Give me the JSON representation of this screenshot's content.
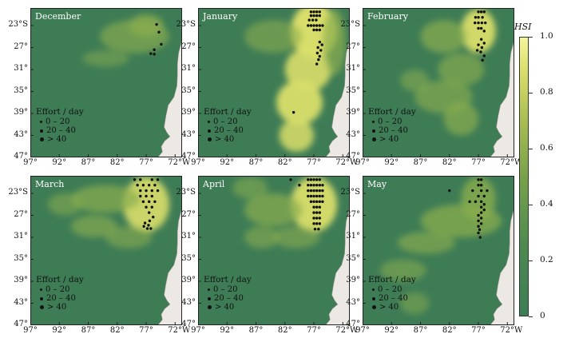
{
  "panels": [
    {
      "title": "December",
      "col": 0,
      "row": 0,
      "dots": [
        [
          -75.2,
          -22.8
        ],
        [
          -74.8,
          -24.2
        ],
        [
          -74.4,
          -26.4
        ],
        [
          -75.6,
          -27.4
        ],
        [
          -76.2,
          -28.1
        ],
        [
          -75.6,
          -28.2
        ]
      ],
      "blobs": [
        [
          -79,
          -25,
          6,
          3,
          0.55
        ],
        [
          -77,
          -23,
          3,
          2,
          0.7
        ],
        [
          -84,
          -29,
          4,
          1.5,
          0.4
        ]
      ]
    },
    {
      "title": "January",
      "col": 1,
      "row": 0,
      "dots": [
        [
          -77.5,
          -20.5
        ],
        [
          -77,
          -20.5
        ],
        [
          -76.5,
          -20.5
        ],
        [
          -76,
          -20.5
        ],
        [
          -77.5,
          -21.2
        ],
        [
          -77,
          -21.2
        ],
        [
          -76.5,
          -21.2
        ],
        [
          -76,
          -21.2
        ],
        [
          -77.8,
          -22
        ],
        [
          -77.2,
          -22
        ],
        [
          -76.6,
          -22
        ],
        [
          -78,
          -23
        ],
        [
          -77.5,
          -23
        ],
        [
          -77,
          -23
        ],
        [
          -76.5,
          -23
        ],
        [
          -76,
          -23
        ],
        [
          -75.5,
          -23
        ],
        [
          -77,
          -23.8
        ],
        [
          -76.5,
          -23.8
        ],
        [
          -76,
          -23.8
        ],
        [
          -76,
          -26
        ],
        [
          -75.6,
          -26.5
        ],
        [
          -76.3,
          -27
        ],
        [
          -75.8,
          -27.5
        ],
        [
          -76.4,
          -28
        ],
        [
          -76,
          -28.6
        ],
        [
          -76.2,
          -29.2
        ],
        [
          -76.5,
          -30
        ],
        [
          -80.5,
          -38.8
        ]
      ],
      "blobs": [
        [
          -77,
          -24,
          4,
          5,
          0.9
        ],
        [
          -78,
          -31,
          4,
          4,
          0.8
        ],
        [
          -79.5,
          -37,
          4,
          4,
          0.85
        ],
        [
          -80,
          -43,
          3,
          3,
          0.75
        ],
        [
          -84,
          -25,
          5,
          3,
          0.5
        ],
        [
          -73.5,
          -26,
          2,
          6,
          0.6
        ]
      ]
    },
    {
      "title": "February",
      "col": 2,
      "row": 0,
      "dots": [
        [
          -77,
          -20.5
        ],
        [
          -76.5,
          -20.5
        ],
        [
          -76,
          -20.5
        ],
        [
          -77.5,
          -21.5
        ],
        [
          -77,
          -21.5
        ],
        [
          -76.3,
          -21.5
        ],
        [
          -77.6,
          -22.5
        ],
        [
          -77,
          -22.5
        ],
        [
          -76.4,
          -22.5
        ],
        [
          -75.8,
          -22.5
        ],
        [
          -77,
          -23.5
        ],
        [
          -76.5,
          -23.5
        ],
        [
          -76,
          -24
        ],
        [
          -76.5,
          -25.5
        ],
        [
          -76,
          -26.2
        ],
        [
          -77,
          -26.5
        ],
        [
          -76.4,
          -27
        ],
        [
          -77.2,
          -27.5
        ],
        [
          -76.6,
          -27.8
        ],
        [
          -76,
          -28.5
        ],
        [
          -76.3,
          -29.3
        ]
      ],
      "blobs": [
        [
          -77,
          -24,
          3,
          4,
          0.85
        ],
        [
          -83,
          -25,
          4,
          3,
          0.6
        ],
        [
          -80,
          -31,
          4,
          3,
          0.55
        ],
        [
          -83,
          -36,
          5,
          3,
          0.55
        ],
        [
          -80,
          -40,
          3,
          3,
          0.6
        ],
        [
          -88,
          -33,
          2.5,
          2,
          0.45
        ]
      ]
    },
    {
      "title": "March",
      "col": 0,
      "row": 1,
      "dots": [
        [
          -79,
          -20.5
        ],
        [
          -78,
          -20.5
        ],
        [
          -76,
          -20.5
        ],
        [
          -75,
          -20.5
        ],
        [
          -78.5,
          -21.5
        ],
        [
          -77.5,
          -21.5
        ],
        [
          -76.5,
          -21.5
        ],
        [
          -75.5,
          -21.5
        ],
        [
          -78,
          -22.5
        ],
        [
          -77,
          -22.5
        ],
        [
          -76,
          -22.5
        ],
        [
          -75,
          -22.5
        ],
        [
          -78,
          -23.5
        ],
        [
          -77,
          -23.5
        ],
        [
          -76,
          -23.5
        ],
        [
          -77.5,
          -24.5
        ],
        [
          -76.5,
          -24.5
        ],
        [
          -75.5,
          -24.5
        ],
        [
          -77,
          -25.5
        ],
        [
          -76,
          -25.5
        ],
        [
          -76.5,
          -26.5
        ],
        [
          -75.8,
          -27.3
        ],
        [
          -76.4,
          -28
        ],
        [
          -77.2,
          -28.4
        ],
        [
          -76.6,
          -28.8
        ],
        [
          -77.4,
          -29
        ],
        [
          -76.8,
          -29.4
        ],
        [
          -76.2,
          -29.4
        ]
      ],
      "blobs": [
        [
          -77,
          -25,
          4,
          5,
          0.8
        ],
        [
          -84,
          -24,
          6,
          2.5,
          0.6
        ],
        [
          -86,
          -29,
          4,
          2,
          0.55
        ],
        [
          -80,
          -31,
          4,
          2,
          0.5
        ],
        [
          -91,
          -25,
          3,
          2,
          0.45
        ]
      ]
    },
    {
      "title": "April",
      "col": 1,
      "row": 1,
      "dots": [
        [
          -81,
          -20.5
        ],
        [
          -79.5,
          -21.5
        ],
        [
          -78,
          -20.5
        ],
        [
          -77.5,
          -20.5
        ],
        [
          -77,
          -20.5
        ],
        [
          -76.5,
          -20.5
        ],
        [
          -76,
          -20.5
        ],
        [
          -78,
          -21.5
        ],
        [
          -77.5,
          -21.5
        ],
        [
          -77,
          -21.5
        ],
        [
          -76.5,
          -21.5
        ],
        [
          -76,
          -21.5
        ],
        [
          -75.5,
          -21.5
        ],
        [
          -78,
          -22.5
        ],
        [
          -77.5,
          -22.5
        ],
        [
          -77,
          -22.5
        ],
        [
          -76.5,
          -22.5
        ],
        [
          -76,
          -22.5
        ],
        [
          -75.5,
          -22.5
        ],
        [
          -78,
          -23.5
        ],
        [
          -77.5,
          -23.5
        ],
        [
          -77,
          -23.5
        ],
        [
          -76.5,
          -23.5
        ],
        [
          -76,
          -23.5
        ],
        [
          -75.5,
          -23.5
        ],
        [
          -77.5,
          -24.5
        ],
        [
          -77,
          -24.5
        ],
        [
          -76.5,
          -24.5
        ],
        [
          -76,
          -24.5
        ],
        [
          -75.5,
          -24.5
        ],
        [
          -77,
          -25.5
        ],
        [
          -76.5,
          -25.5
        ],
        [
          -76,
          -25.5
        ],
        [
          -77,
          -26.5
        ],
        [
          -76.5,
          -26.5
        ],
        [
          -76,
          -26.5
        ],
        [
          -77,
          -27.5
        ],
        [
          -76.5,
          -27.5
        ],
        [
          -76,
          -27.5
        ],
        [
          -77,
          -28.5
        ],
        [
          -76.5,
          -28.5
        ],
        [
          -76,
          -28.5
        ],
        [
          -76.8,
          -29.5
        ],
        [
          -76.2,
          -29.5
        ]
      ],
      "blobs": [
        [
          -77,
          -25,
          4,
          5,
          0.85
        ],
        [
          -84,
          -26,
          5,
          3,
          0.6
        ],
        [
          -86,
          -31,
          3,
          2,
          0.5
        ],
        [
          -80,
          -31,
          4,
          2,
          0.5
        ],
        [
          -88,
          -22,
          3,
          2,
          0.45
        ]
      ]
    },
    {
      "title": "May",
      "col": 2,
      "row": 1,
      "dots": [
        [
          -82,
          -22.5
        ],
        [
          -77,
          -20.5
        ],
        [
          -76.5,
          -20.5
        ],
        [
          -77,
          -21.5
        ],
        [
          -76.5,
          -21.5
        ],
        [
          -78,
          -22.5
        ],
        [
          -76.5,
          -22.5
        ],
        [
          -75.5,
          -22.5
        ],
        [
          -77,
          -23.5
        ],
        [
          -76,
          -23.5
        ],
        [
          -78.5,
          -24.5
        ],
        [
          -77.5,
          -24.5
        ],
        [
          -76.5,
          -24.5
        ],
        [
          -76,
          -25
        ],
        [
          -76.5,
          -25.5
        ],
        [
          -76,
          -26
        ],
        [
          -76.5,
          -26.5
        ],
        [
          -77,
          -27
        ],
        [
          -76.5,
          -27.5
        ],
        [
          -77,
          -28
        ],
        [
          -76.5,
          -28.5
        ],
        [
          -77,
          -29
        ],
        [
          -76.8,
          -29.6
        ],
        [
          -77,
          -30.2
        ],
        [
          -76.7,
          -31
        ]
      ],
      "blobs": [
        [
          -80,
          -28,
          7,
          3,
          0.65
        ],
        [
          -86,
          -32,
          5,
          2,
          0.55
        ],
        [
          -77,
          -24,
          3,
          4,
          0.7
        ],
        [
          -90,
          -37,
          4,
          2,
          0.45
        ],
        [
          -88,
          -43,
          2.5,
          2,
          0.4
        ]
      ]
    }
  ],
  "axes": {
    "lat_ticks": [
      "23°S",
      "27°",
      "31°",
      "35°",
      "39°",
      "43°",
      "47°"
    ],
    "lat_values": [
      -23,
      -27,
      -31,
      -35,
      -39,
      -43,
      -47
    ],
    "lon_ticks": [
      "97°",
      "92°",
      "87°",
      "82°",
      "77°",
      "72°W"
    ],
    "lon_values": [
      -97,
      -92,
      -87,
      -82,
      -77,
      -72
    ],
    "lon_range": [
      -97,
      -70.8
    ],
    "lat_range": [
      -19.8,
      -47
    ]
  },
  "legend": {
    "title": "Effort / day",
    "items": [
      "0 – 20",
      "20 – 40",
      "> 40"
    ]
  },
  "colorbar": {
    "label": "HSI",
    "ticks": [
      "0",
      "0.2",
      "0.4",
      "0.6",
      "0.8",
      "1.0"
    ],
    "values": [
      0,
      0.2,
      0.4,
      0.6,
      0.8,
      1.0
    ]
  },
  "colors": {
    "ocean": "#3e7c55",
    "land": "#ece8e3",
    "high": "#d9de6a",
    "mid": "#8aae4e",
    "dot": "#111111"
  }
}
